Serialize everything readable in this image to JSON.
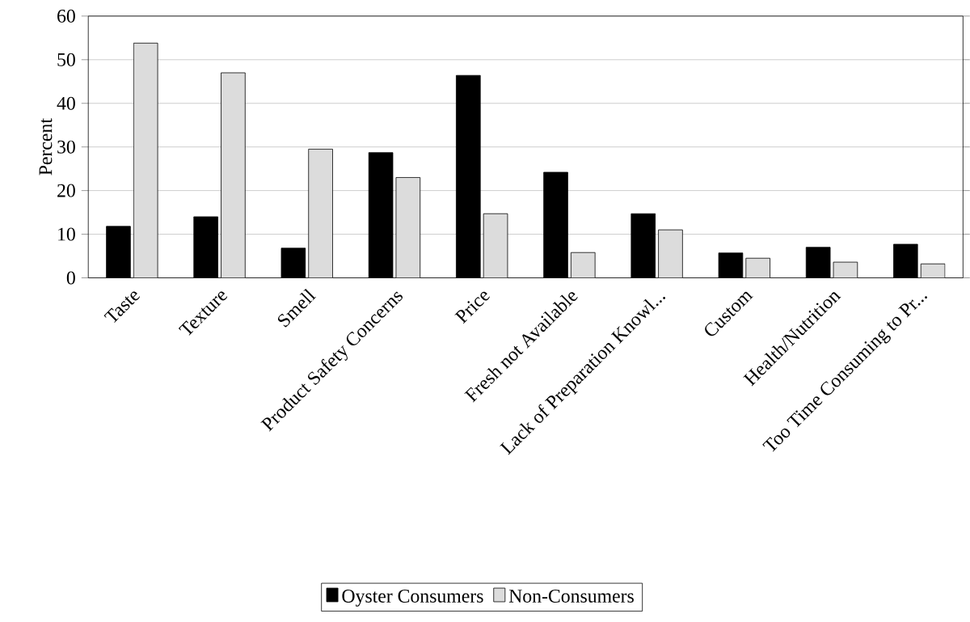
{
  "chart_data": {
    "type": "bar",
    "ylabel": "Percent",
    "categories": [
      "Taste",
      "Texture",
      "Smell",
      "Product Safety Concerns",
      "Price",
      "Fresh not Available",
      "Lack of Preparation Knowl...",
      "Custom",
      "Health/Nutrition",
      "Too Time Consuming to Pr..."
    ],
    "series": [
      {
        "name": "Oyster Consumers",
        "color": "#000000",
        "values": [
          11.8,
          14.0,
          6.8,
          28.7,
          46.4,
          24.2,
          14.7,
          5.7,
          7.0,
          7.7
        ]
      },
      {
        "name": "Non-Consumers",
        "color": "#dcdcdc",
        "values": [
          53.8,
          47.0,
          29.5,
          23.0,
          14.7,
          5.8,
          11.0,
          4.5,
          3.6,
          3.2
        ]
      }
    ],
    "ylim": [
      0,
      60
    ],
    "yticks": [
      0,
      10,
      20,
      30,
      40,
      50,
      60
    ],
    "grid": "y",
    "legend": "bottom"
  }
}
